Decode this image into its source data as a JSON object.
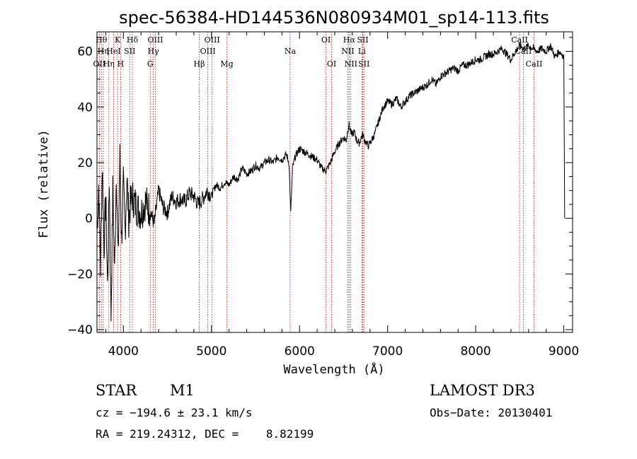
{
  "chart_data": {
    "type": "line",
    "title": "spec-56384-HD144536N080934M01_sp14-113.fits",
    "xlabel": "Wavelength (Å)",
    "ylabel": "Flux (relative)",
    "xlim": [
      3700,
      9100
    ],
    "ylim": [
      -41,
      67
    ],
    "xticks": [
      4000,
      5000,
      6000,
      7000,
      8000,
      9000
    ],
    "yticks": [
      -40,
      -20,
      0,
      20,
      40,
      60
    ],
    "series": [
      {
        "name": "flux",
        "x": [
          3700,
          3720,
          3740,
          3760,
          3780,
          3800,
          3820,
          3840,
          3860,
          3880,
          3900,
          3920,
          3940,
          3960,
          3980,
          4000,
          4020,
          4040,
          4060,
          4080,
          4100,
          4150,
          4200,
          4250,
          4300,
          4350,
          4400,
          4450,
          4500,
          4550,
          4600,
          4650,
          4700,
          4750,
          4800,
          4850,
          4900,
          4950,
          5000,
          5050,
          5100,
          5150,
          5200,
          5250,
          5300,
          5350,
          5400,
          5450,
          5500,
          5550,
          5600,
          5650,
          5700,
          5750,
          5800,
          5850,
          5880,
          5900,
          5920,
          5950,
          6000,
          6050,
          6100,
          6150,
          6200,
          6250,
          6300,
          6350,
          6400,
          6450,
          6500,
          6530,
          6560,
          6590,
          6620,
          6650,
          6680,
          6700,
          6720,
          6740,
          6760,
          6780,
          6800,
          6850,
          6900,
          6950,
          7000,
          7050,
          7100,
          7150,
          7200,
          7250,
          7300,
          7350,
          7400,
          7450,
          7500,
          7550,
          7600,
          7650,
          7700,
          7750,
          7800,
          7850,
          7900,
          7950,
          8000,
          8050,
          8100,
          8150,
          8200,
          8250,
          8300,
          8350,
          8400,
          8450,
          8500,
          8550,
          8600,
          8650,
          8700,
          8750,
          8800,
          8850,
          8900,
          8950,
          8980,
          9000,
          9010
        ],
        "y": [
          -5,
          12,
          -18,
          20,
          -10,
          8,
          -25,
          15,
          -35,
          10,
          -20,
          18,
          -15,
          22,
          -8,
          12,
          -5,
          15,
          0,
          5,
          8,
          4,
          2,
          6,
          3,
          -2,
          10,
          4,
          2,
          8,
          6,
          7,
          6,
          9,
          8,
          5,
          7,
          10,
          8,
          12,
          11,
          13,
          12,
          15,
          14,
          18,
          16,
          17,
          19,
          18,
          20,
          21,
          20,
          22,
          21,
          23,
          20,
          2,
          18,
          22,
          25,
          24,
          23,
          22,
          21,
          18,
          17,
          20,
          24,
          27,
          29,
          28,
          34,
          30,
          31,
          28,
          27,
          29,
          30,
          28,
          27,
          26,
          27,
          30,
          35,
          40,
          42,
          41,
          43,
          40,
          42,
          44,
          45,
          46,
          47,
          48,
          50,
          48,
          51,
          52,
          53,
          54,
          53,
          55,
          55,
          56,
          57,
          57,
          58,
          59,
          59,
          60,
          61,
          59,
          57,
          60,
          62,
          61,
          62,
          61,
          60,
          61,
          60,
          62,
          58,
          60,
          59,
          58,
          0
        ]
      }
    ],
    "spectral_lines": [
      {
        "label": "OII",
        "x": 3727,
        "row": 2
      },
      {
        "label": "Hθ",
        "x": 3750,
        "row": 0
      },
      {
        "label": "Hη",
        "x": 3771,
        "row": 1
      },
      {
        "label": "Hη",
        "x": 3835,
        "row": 2
      },
      {
        "label": "K",
        "x": 3934,
        "row": 0
      },
      {
        "label": "HeI",
        "x": 3889,
        "row": 1
      },
      {
        "label": "H",
        "x": 3969,
        "row": 2
      },
      {
        "label": "Hδ",
        "x": 4102,
        "row": 0
      },
      {
        "label": "SII",
        "x": 4072,
        "row": 1
      },
      {
        "label": "OIII",
        "x": 4363,
        "row": 0
      },
      {
        "label": "Hγ",
        "x": 4340,
        "row": 1
      },
      {
        "label": "G",
        "x": 4305,
        "row": 2
      },
      {
        "label": "Hβ",
        "x": 4861,
        "row": 2
      },
      {
        "label": "OIII",
        "x": 5007,
        "row": 0
      },
      {
        "label": "OIII",
        "x": 4959,
        "row": 1
      },
      {
        "label": "Mg",
        "x": 5175,
        "row": 2
      },
      {
        "label": "Na",
        "x": 5893,
        "row": 1
      },
      {
        "label": "OI",
        "x": 6300,
        "row": 0
      },
      {
        "label": "OI",
        "x": 6364,
        "row": 2
      },
      {
        "label": "Hα",
        "x": 6563,
        "row": 0
      },
      {
        "label": "NII",
        "x": 6548,
        "row": 1
      },
      {
        "label": "NII",
        "x": 6583,
        "row": 2
      },
      {
        "label": "SII",
        "x": 6717,
        "row": 0
      },
      {
        "label": "Li",
        "x": 6708,
        "row": 1
      },
      {
        "label": "SII",
        "x": 6731,
        "row": 2
      },
      {
        "label": "CaII",
        "x": 8498,
        "row": 0
      },
      {
        "label": "CaII",
        "x": 8542,
        "row": 1
      },
      {
        "label": "CaII",
        "x": 8662,
        "row": 2
      }
    ]
  },
  "info": {
    "class": "STAR",
    "subclass": "M1",
    "survey": "LAMOST DR3",
    "cz": "cz = −194.6 ± 23.1 km/s",
    "obsdate": "Obs−Date: 20130401",
    "radec": "RA = 219.24312, DEC =    8.82199"
  },
  "colors": {
    "line": "#c00000",
    "flux": "#000000"
  }
}
